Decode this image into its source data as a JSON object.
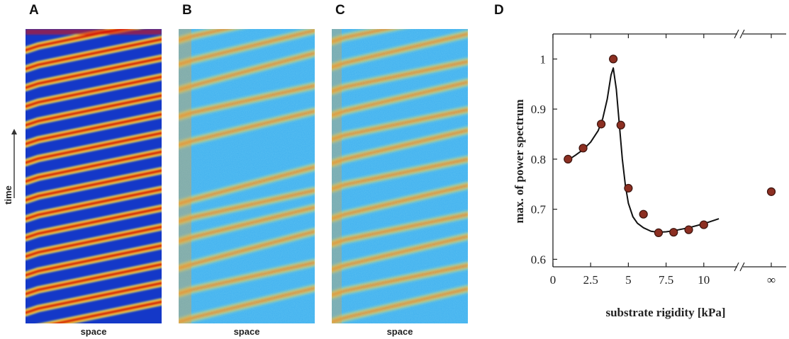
{
  "figure": {
    "panels": {
      "A": {
        "letter": "A",
        "xlabel": "space"
      },
      "B": {
        "letter": "B",
        "xlabel": "space"
      },
      "C": {
        "letter": "C",
        "xlabel": "space"
      }
    },
    "time_label": "time",
    "colors": {
      "background_blue": "#1438c8",
      "pale_blue": "#3fb0ee",
      "wave_red": "#d40e0e",
      "wave_orange": "#f7a21c",
      "wave_yellow": "#f0ec5a",
      "marker_fill": "#8c2f22",
      "curve": "#111111"
    }
  },
  "panel_d": {
    "letter": "D",
    "chart_data": {
      "type": "scatter",
      "xlabel": "substrate rigidity [kPa]",
      "ylabel": "max. of power spectrum",
      "x_ticks": [
        "0",
        "2.5",
        "5",
        "7.5",
        "10",
        "∞"
      ],
      "y_ticks": [
        "0.6",
        "0.7",
        "0.8",
        "0.9",
        "1"
      ],
      "xlim": [
        0,
        12.6
      ],
      "ylim": [
        0.585,
        1.05
      ],
      "axis_break": true,
      "series": [
        {
          "kind": "points",
          "x": [
            1,
            2,
            3.2,
            4,
            4.5,
            5,
            6,
            7,
            8,
            9,
            10
          ],
          "y": [
            0.8,
            0.822,
            0.87,
            1.0,
            0.868,
            0.742,
            0.69,
            0.653,
            0.654,
            0.659,
            0.669
          ]
        },
        {
          "kind": "fit-curve",
          "x": [
            1,
            1.5,
            2,
            2.5,
            3,
            3.3,
            3.6,
            3.85,
            4,
            4.2,
            4.4,
            4.6,
            4.8,
            5,
            5.3,
            5.6,
            6,
            6.5,
            7,
            7.5,
            8,
            9,
            10,
            11
          ],
          "y": [
            0.798,
            0.808,
            0.819,
            0.834,
            0.857,
            0.881,
            0.92,
            0.968,
            0.982,
            0.94,
            0.87,
            0.8,
            0.748,
            0.712,
            0.685,
            0.672,
            0.663,
            0.656,
            0.654,
            0.655,
            0.657,
            0.663,
            0.671,
            0.681
          ]
        },
        {
          "kind": "infinity-point",
          "x": "∞",
          "y": 0.735
        }
      ]
    }
  }
}
